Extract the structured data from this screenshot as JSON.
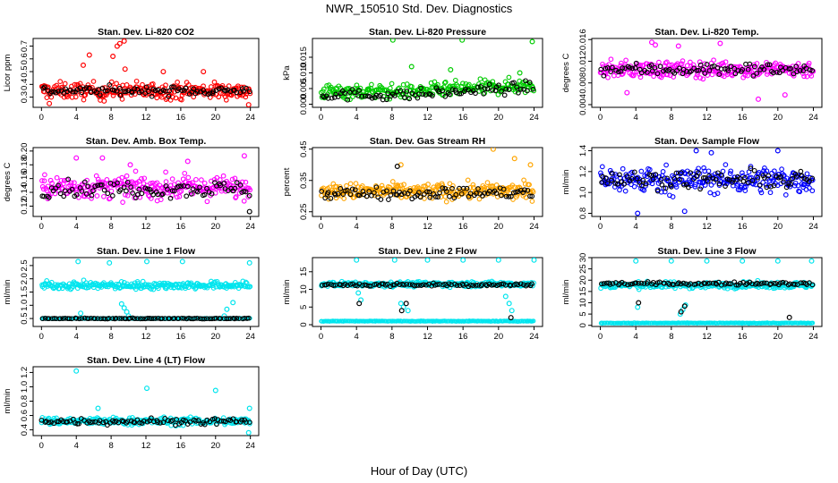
{
  "figure": {
    "title": "NWR_150510  Std. Dev. Diagnostics",
    "xlabel": "Hour of Day (UTC)"
  },
  "chart_data": [
    {
      "type": "scatter",
      "title": "Stan. Dev. Li-820 CO2",
      "ylabel": "Licor ppm",
      "xlim": [
        0,
        24
      ],
      "xticks": [
        0,
        4,
        8,
        12,
        16,
        20,
        24
      ],
      "ylim": [
        0.22,
        0.76
      ],
      "yticks": [
        "0.3",
        "0.4",
        "0.5",
        "0.6",
        "0.7"
      ],
      "grid": false,
      "series": [
        {
          "color": "#ff0000",
          "base": 0.35,
          "spread": 0.055,
          "outliers": [
            [
              5.5,
              0.63
            ],
            [
              8.2,
              0.62
            ],
            [
              8.7,
              0.7
            ],
            [
              9.0,
              0.72
            ],
            [
              9.5,
              0.74
            ],
            [
              9.6,
              0.52
            ],
            [
              14.0,
              0.5
            ],
            [
              18.6,
              0.5
            ],
            [
              4.8,
              0.55
            ],
            [
              0.9,
              0.25
            ],
            [
              7.2,
              0.27
            ],
            [
              23.8,
              0.24
            ]
          ]
        },
        {
          "color": "#000000",
          "base": 0.35,
          "spread": 0.03,
          "outliers": []
        }
      ]
    },
    {
      "type": "scatter",
      "title": "Stan. Dev. Li-820 Pressure",
      "ylabel": "kPa",
      "xlim": [
        0,
        24
      ],
      "xticks": [
        0,
        4,
        8,
        12,
        16,
        20,
        24
      ],
      "ylim": [
        -0.001,
        0.021
      ],
      "yticks": [
        "0.000",
        "0.005",
        "0.010",
        "0.015"
      ],
      "grid": false,
      "series": [
        {
          "color": "#00cc00",
          "base": 0.004,
          "spread": 0.002,
          "trend": 0.0001,
          "outliers": [
            [
              8.1,
              0.0205
            ],
            [
              15.9,
              0.0205
            ],
            [
              23.8,
              0.02
            ],
            [
              10.2,
              0.012
            ],
            [
              14.6,
              0.011
            ],
            [
              22.4,
              0.01
            ]
          ]
        },
        {
          "color": "#000000",
          "base": 0.003,
          "spread": 0.0015,
          "trend": 0.00012,
          "outliers": []
        }
      ]
    },
    {
      "type": "scatter",
      "title": "Stan. Dev. Li-820 Temp.",
      "ylabel": "degrees C",
      "xlim": [
        0,
        24
      ],
      "xticks": [
        0,
        4,
        8,
        12,
        16,
        20,
        24
      ],
      "ylim": [
        0.0035,
        0.0162
      ],
      "yticks": [
        "0.004",
        "0.008",
        "0.012",
        "0.016"
      ],
      "grid": false,
      "series": [
        {
          "color": "#ff00ff",
          "base": 0.0105,
          "spread": 0.0013,
          "outliers": [
            [
              5.8,
              0.0155
            ],
            [
              6.2,
              0.015
            ],
            [
              3.0,
              0.0062
            ],
            [
              17.8,
              0.005
            ],
            [
              8.8,
              0.0148
            ],
            [
              13.5,
              0.0153
            ],
            [
              20.8,
              0.0058
            ]
          ]
        },
        {
          "color": "#000000",
          "base": 0.0105,
          "spread": 0.001,
          "outliers": []
        }
      ]
    },
    {
      "type": "scatter",
      "title": "Stan. Dev. Amb. Box Temp.",
      "ylabel": "degrees C",
      "xlim": [
        0,
        24
      ],
      "xticks": [
        0,
        4,
        8,
        12,
        16,
        20,
        24
      ],
      "ylim": [
        0.105,
        0.205
      ],
      "yticks": [
        "0.12",
        "0.14",
        "0.16",
        "0.18",
        "0.20"
      ],
      "grid": false,
      "series": [
        {
          "color": "#ff00ff",
          "base": 0.147,
          "spread": 0.014,
          "outliers": [
            [
              4.0,
              0.19
            ],
            [
              7.0,
              0.19
            ],
            [
              23.3,
              0.193
            ],
            [
              10.2,
              0.18
            ],
            [
              16.8,
              0.185
            ]
          ]
        },
        {
          "color": "#000000",
          "base": 0.145,
          "spread": 0.01,
          "outliers": [
            [
              23.9,
              0.112
            ]
          ]
        }
      ]
    },
    {
      "type": "scatter",
      "title": "Stan. Dev. Gas Stream RH",
      "ylabel": "percent",
      "xlim": [
        0,
        24
      ],
      "xticks": [
        0,
        4,
        8,
        12,
        16,
        20,
        24
      ],
      "ylim": [
        0.235,
        0.455
      ],
      "yticks": [
        "0.25",
        "0.35",
        "0.45"
      ],
      "grid": false,
      "series": [
        {
          "color": "#ffa500",
          "base": 0.315,
          "spread": 0.022,
          "outliers": [
            [
              9.0,
              0.4
            ],
            [
              19.4,
              0.45
            ],
            [
              21.8,
              0.42
            ],
            [
              23.6,
              0.4
            ]
          ]
        },
        {
          "color": "#000000",
          "base": 0.31,
          "spread": 0.016,
          "outliers": [
            [
              8.6,
              0.395
            ]
          ]
        }
      ]
    },
    {
      "type": "scatter",
      "title": "Stan. Dev. Sample Flow",
      "ylabel": "ml/min",
      "xlim": [
        0,
        24
      ],
      "xticks": [
        0,
        4,
        8,
        12,
        16,
        20,
        24
      ],
      "ylim": [
        0.77,
        1.43
      ],
      "yticks": [
        "0.8",
        "1.0",
        "1.2",
        "1.4"
      ],
      "grid": false,
      "series": [
        {
          "color": "#0000ff",
          "base": 1.12,
          "spread": 0.11,
          "outliers": [
            [
              4.2,
              0.8
            ],
            [
              9.5,
              0.82
            ],
            [
              20.0,
              1.4
            ],
            [
              10.8,
              1.4
            ],
            [
              12.5,
              1.38
            ]
          ]
        },
        {
          "color": "#000000",
          "base": 1.12,
          "spread": 0.07,
          "outliers": []
        }
      ]
    },
    {
      "type": "scatter",
      "title": "Stan. Dev. Line 1 Flow",
      "ylabel": "ml/min",
      "xlim": [
        0,
        24
      ],
      "xticks": [
        0,
        4,
        8,
        12,
        16,
        20,
        24
      ],
      "ylim": [
        0.2,
        2.8
      ],
      "yticks": [
        "0.5",
        "1.0",
        "1.5",
        "2.0",
        "2.5"
      ],
      "grid": false,
      "series": [
        {
          "color": "#00e5ee",
          "base": 1.75,
          "spread": 0.12,
          "band2": 0.5,
          "outliers": [
            [
              4.2,
              2.65
            ],
            [
              7.8,
              2.6
            ],
            [
              12.1,
              2.65
            ],
            [
              16.2,
              2.65
            ],
            [
              23.9,
              2.6
            ],
            [
              9.5,
              0.9
            ],
            [
              9.8,
              0.75
            ],
            [
              10.0,
              0.6
            ],
            [
              9.2,
              1.05
            ],
            [
              21.0,
              0.6
            ],
            [
              21.3,
              0.85
            ],
            [
              22.0,
              1.1
            ],
            [
              4.5,
              0.7
            ]
          ]
        },
        {
          "color": "#000000",
          "base": 0.5,
          "spread": 0.012,
          "outliers": []
        }
      ]
    },
    {
      "type": "scatter",
      "title": "Stan. Dev. Line 2 Flow",
      "ylabel": "ml/min",
      "xlim": [
        0,
        24
      ],
      "xticks": [
        0,
        4,
        8,
        12,
        16,
        20,
        24
      ],
      "ylim": [
        -0.5,
        19
      ],
      "yticks": [
        "0",
        "5",
        "10",
        "15"
      ],
      "grid": false,
      "series": [
        {
          "color": "#00e5ee",
          "base": 11.5,
          "spread": 0.6,
          "band2": 1.0,
          "outliers": [
            [
              4.0,
              18.3
            ],
            [
              8.3,
              18.3
            ],
            [
              12.0,
              18.3
            ],
            [
              16.0,
              18.3
            ],
            [
              20.0,
              18.3
            ],
            [
              24.0,
              18.3
            ],
            [
              4.5,
              7.0
            ],
            [
              4.2,
              9.0
            ],
            [
              9.0,
              6.0
            ],
            [
              9.3,
              5.0
            ],
            [
              9.8,
              4.0
            ],
            [
              20.8,
              8.0
            ],
            [
              21.2,
              6.0
            ],
            [
              21.5,
              4.0
            ]
          ]
        },
        {
          "color": "#000000",
          "base": 11.3,
          "spread": 0.4,
          "outliers": [
            [
              4.3,
              6.0
            ],
            [
              9.1,
              4.0
            ],
            [
              9.6,
              6.0
            ],
            [
              21.4,
              2.0
            ]
          ]
        }
      ]
    },
    {
      "type": "scatter",
      "title": "Stan. Dev. Line 3 Flow",
      "ylabel": "ml/min",
      "xlim": [
        0,
        24
      ],
      "xticks": [
        0,
        4,
        8,
        12,
        16,
        20,
        24
      ],
      "ylim": [
        -0.5,
        30
      ],
      "yticks": [
        "0",
        "5",
        "10",
        "15",
        "20",
        "25",
        "30"
      ],
      "grid": false,
      "series": [
        {
          "color": "#00e5ee",
          "base": 17.8,
          "spread": 1.2,
          "band2": 1.0,
          "outliers": [
            [
              4.0,
              28.5
            ],
            [
              8.0,
              28.5
            ],
            [
              12.0,
              28.5
            ],
            [
              16.0,
              28.5
            ],
            [
              20.0,
              28.5
            ],
            [
              23.8,
              28.5
            ],
            [
              4.2,
              8.0
            ],
            [
              9.0,
              5.0
            ],
            [
              9.3,
              7.0
            ],
            [
              9.6,
              9.0
            ]
          ]
        },
        {
          "color": "#000000",
          "base": 18.5,
          "spread": 0.6,
          "outliers": [
            [
              4.3,
              10.0
            ],
            [
              9.1,
              6.0
            ],
            [
              9.5,
              8.5
            ],
            [
              21.3,
              3.5
            ]
          ]
        }
      ]
    },
    {
      "type": "scatter",
      "title": "Stan. Dev. Line 4 (LT) Flow",
      "ylabel": "ml/min",
      "xlim": [
        0,
        24
      ],
      "xticks": [
        0,
        4,
        8,
        12,
        16,
        20,
        24
      ],
      "ylim": [
        0.32,
        1.28
      ],
      "yticks": [
        "0.4",
        "0.6",
        "0.8",
        "1.0",
        "1.2"
      ],
      "grid": false,
      "series": [
        {
          "color": "#00e5ee",
          "base": 0.52,
          "spread": 0.045,
          "outliers": [
            [
              4.0,
              1.22
            ],
            [
              12.1,
              0.98
            ],
            [
              20.0,
              0.95
            ],
            [
              23.8,
              0.36
            ],
            [
              23.9,
              0.7
            ],
            [
              6.5,
              0.7
            ]
          ]
        },
        {
          "color": "#000000",
          "base": 0.52,
          "spread": 0.04,
          "outliers": []
        }
      ]
    }
  ]
}
